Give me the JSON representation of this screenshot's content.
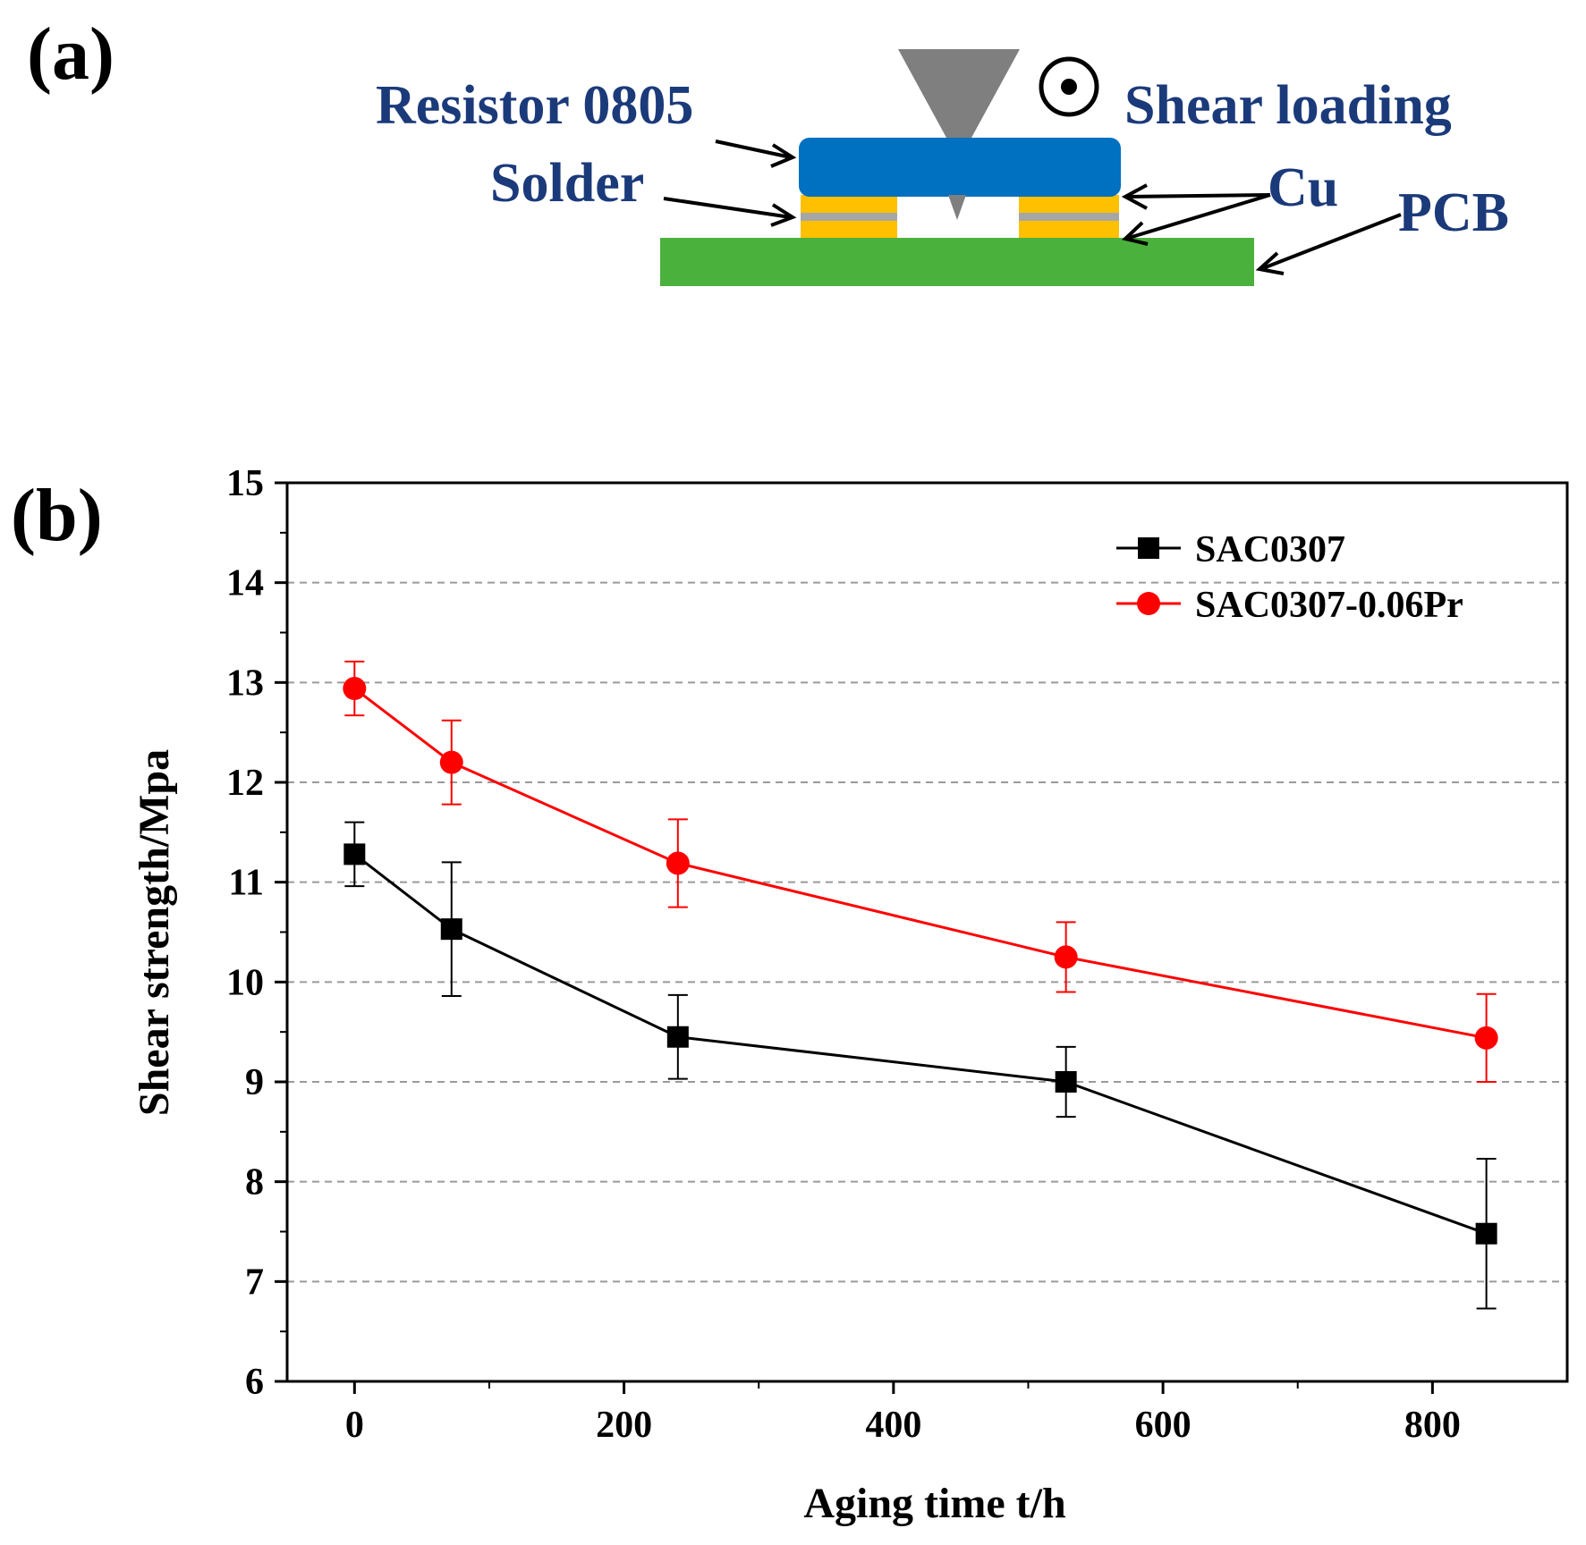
{
  "panel_a": {
    "label": "(a)",
    "labels": {
      "resistor": "Resistor 0805",
      "solder": "Solder",
      "shear": "Shear loading",
      "cu": "Cu",
      "pcb": "PCB"
    },
    "colors": {
      "resistor": "#0070c0",
      "solder": "#ffc000",
      "cu_layer": "#a6a6a6",
      "pcb": "#4bb13d",
      "tool": "#7f7f7f",
      "label": "#1b3a7a"
    }
  },
  "panel_b": {
    "label": "(b)"
  },
  "chart_data": {
    "type": "line",
    "title": "",
    "xlabel": "Aging time t/h",
    "ylabel": "Shear strength/Mpa",
    "xlim": [
      -50,
      900
    ],
    "ylim": [
      6,
      15
    ],
    "xticks": [
      0,
      200,
      400,
      600,
      800
    ],
    "yticks": [
      6,
      7,
      8,
      9,
      10,
      11,
      12,
      13,
      14,
      15
    ],
    "grid": "horizontal dashed",
    "legend_position": "top-right",
    "x": [
      0,
      72,
      240,
      528,
      840
    ],
    "series": [
      {
        "name": "SAC0307",
        "color": "#000000",
        "marker": "square",
        "values": [
          11.28,
          10.53,
          9.45,
          9.0,
          7.48
        ],
        "errors": [
          0.32,
          0.67,
          0.42,
          0.35,
          0.75
        ]
      },
      {
        "name": "SAC0307-0.06Pr",
        "color": "#ff0000",
        "marker": "circle",
        "values": [
          12.94,
          12.2,
          11.19,
          10.25,
          9.44
        ],
        "errors": [
          0.27,
          0.42,
          0.44,
          0.35,
          0.44
        ]
      }
    ]
  }
}
